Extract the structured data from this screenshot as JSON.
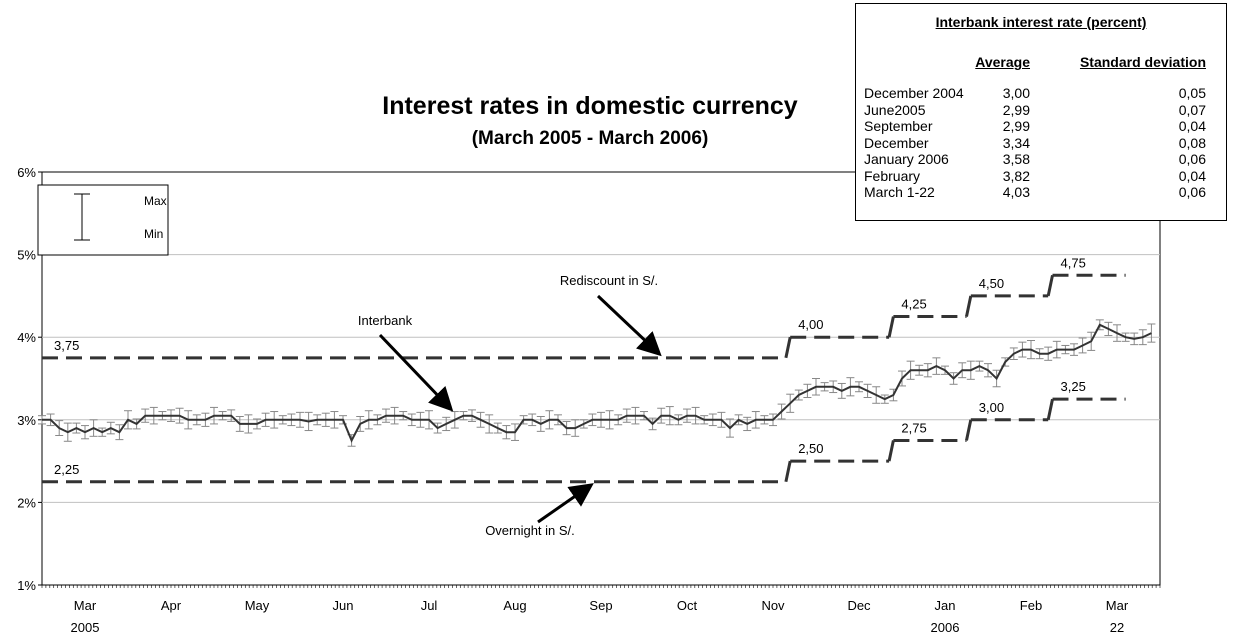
{
  "chart_data": {
    "type": "line",
    "title": "Interest rates in domestic currency",
    "subtitle": "(March 2005 - March 2006)",
    "y_axis": {
      "min": 1,
      "max": 6,
      "ticks": [
        "1%",
        "2%",
        "3%",
        "4%",
        "5%",
        "6%"
      ]
    },
    "x_axis": {
      "start_month_index": 0,
      "months": [
        {
          "label": "Mar",
          "year": "2005"
        },
        {
          "label": "Apr",
          "year": ""
        },
        {
          "label": "May",
          "year": ""
        },
        {
          "label": "Jun",
          "year": ""
        },
        {
          "label": "Jul",
          "year": ""
        },
        {
          "label": "Aug",
          "year": ""
        },
        {
          "label": "Sep",
          "year": ""
        },
        {
          "label": "Oct",
          "year": ""
        },
        {
          "label": "Nov",
          "year": ""
        },
        {
          "label": "Dec",
          "year": ""
        },
        {
          "label": "Jan",
          "year": "2006"
        },
        {
          "label": "Feb",
          "year": ""
        },
        {
          "label": "Mar",
          "year": "22"
        }
      ]
    },
    "grid": true,
    "legend": {
      "placement": "top-left",
      "max_label": "Max",
      "min_label": "Min"
    },
    "rediscount": {
      "name": "Rediscount in S/.",
      "steps": [
        {
          "from": 0.0,
          "to": 8.65,
          "value": 3.75,
          "label": "3,75"
        },
        {
          "from": 8.7,
          "to": 9.85,
          "value": 4.0,
          "label": "4,00"
        },
        {
          "from": 9.9,
          "to": 10.75,
          "value": 4.25,
          "label": "4,25"
        },
        {
          "from": 10.8,
          "to": 11.7,
          "value": 4.5,
          "label": "4,50"
        },
        {
          "from": 11.75,
          "to": 12.6,
          "value": 4.75,
          "label": "4,75"
        }
      ]
    },
    "overnight": {
      "name": "Overnight in S/.",
      "steps": [
        {
          "from": 0.0,
          "to": 8.65,
          "value": 2.25,
          "label": "2,25"
        },
        {
          "from": 8.7,
          "to": 9.85,
          "value": 2.5,
          "label": "2,50"
        },
        {
          "from": 9.9,
          "to": 10.75,
          "value": 2.75,
          "label": "2,75"
        },
        {
          "from": 10.8,
          "to": 11.7,
          "value": 3.0,
          "label": "3,00"
        },
        {
          "from": 11.75,
          "to": 12.6,
          "value": 3.25,
          "label": "3,25"
        }
      ]
    },
    "interbank": {
      "name": "Interbank",
      "points": [
        [
          0.0,
          3.0
        ],
        [
          0.1,
          3.0
        ],
        [
          0.2,
          2.9
        ],
        [
          0.3,
          2.85
        ],
        [
          0.4,
          2.9
        ],
        [
          0.5,
          2.85
        ],
        [
          0.6,
          2.9
        ],
        [
          0.7,
          2.85
        ],
        [
          0.8,
          2.9
        ],
        [
          0.9,
          2.85
        ],
        [
          1.0,
          3.0
        ],
        [
          1.1,
          2.95
        ],
        [
          1.2,
          3.05
        ],
        [
          1.3,
          3.05
        ],
        [
          1.4,
          3.05
        ],
        [
          1.5,
          3.05
        ],
        [
          1.6,
          3.05
        ],
        [
          1.7,
          3.0
        ],
        [
          1.8,
          3.0
        ],
        [
          1.9,
          3.0
        ],
        [
          2.0,
          3.05
        ],
        [
          2.1,
          3.05
        ],
        [
          2.2,
          3.05
        ],
        [
          2.3,
          2.95
        ],
        [
          2.4,
          2.95
        ],
        [
          2.5,
          2.95
        ],
        [
          2.6,
          3.0
        ],
        [
          2.7,
          3.0
        ],
        [
          2.8,
          3.0
        ],
        [
          2.9,
          3.0
        ],
        [
          3.0,
          3.0
        ],
        [
          3.1,
          2.98
        ],
        [
          3.2,
          3.0
        ],
        [
          3.3,
          3.0
        ],
        [
          3.4,
          3.0
        ],
        [
          3.5,
          3.0
        ],
        [
          3.6,
          2.75
        ],
        [
          3.7,
          2.95
        ],
        [
          3.8,
          3.0
        ],
        [
          3.9,
          3.0
        ],
        [
          4.0,
          3.05
        ],
        [
          4.1,
          3.05
        ],
        [
          4.2,
          3.05
        ],
        [
          4.3,
          3.0
        ],
        [
          4.4,
          3.0
        ],
        [
          4.5,
          3.0
        ],
        [
          4.6,
          2.9
        ],
        [
          4.7,
          2.95
        ],
        [
          4.8,
          3.0
        ],
        [
          4.9,
          3.05
        ],
        [
          5.0,
          3.05
        ],
        [
          5.1,
          3.0
        ],
        [
          5.2,
          2.95
        ],
        [
          5.3,
          2.9
        ],
        [
          5.4,
          2.85
        ],
        [
          5.5,
          2.85
        ],
        [
          5.6,
          3.0
        ],
        [
          5.7,
          3.0
        ],
        [
          5.8,
          2.95
        ],
        [
          5.9,
          3.0
        ],
        [
          6.0,
          3.0
        ],
        [
          6.1,
          2.9
        ],
        [
          6.2,
          2.9
        ],
        [
          6.3,
          2.95
        ],
        [
          6.4,
          3.0
        ],
        [
          6.5,
          3.0
        ],
        [
          6.6,
          3.0
        ],
        [
          6.7,
          3.0
        ],
        [
          6.8,
          3.05
        ],
        [
          6.9,
          3.05
        ],
        [
          7.0,
          3.05
        ],
        [
          7.1,
          2.95
        ],
        [
          7.2,
          3.05
        ],
        [
          7.3,
          3.05
        ],
        [
          7.4,
          3.0
        ],
        [
          7.5,
          3.05
        ],
        [
          7.6,
          3.05
        ],
        [
          7.7,
          3.0
        ],
        [
          7.8,
          3.0
        ],
        [
          7.9,
          3.0
        ],
        [
          8.0,
          2.9
        ],
        [
          8.1,
          3.0
        ],
        [
          8.2,
          2.95
        ],
        [
          8.3,
          3.0
        ],
        [
          8.4,
          3.0
        ],
        [
          8.5,
          3.0
        ],
        [
          8.6,
          3.1
        ],
        [
          8.7,
          3.2
        ],
        [
          8.8,
          3.3
        ],
        [
          8.9,
          3.35
        ],
        [
          9.0,
          3.4
        ],
        [
          9.1,
          3.4
        ],
        [
          9.2,
          3.4
        ],
        [
          9.3,
          3.35
        ],
        [
          9.4,
          3.4
        ],
        [
          9.5,
          3.4
        ],
        [
          9.6,
          3.35
        ],
        [
          9.7,
          3.3
        ],
        [
          9.8,
          3.25
        ],
        [
          9.9,
          3.3
        ],
        [
          10.0,
          3.5
        ],
        [
          10.1,
          3.6
        ],
        [
          10.2,
          3.6
        ],
        [
          10.3,
          3.6
        ],
        [
          10.4,
          3.65
        ],
        [
          10.5,
          3.6
        ],
        [
          10.6,
          3.5
        ],
        [
          10.7,
          3.6
        ],
        [
          10.8,
          3.6
        ],
        [
          10.9,
          3.65
        ],
        [
          11.0,
          3.6
        ],
        [
          11.1,
          3.5
        ],
        [
          11.2,
          3.7
        ],
        [
          11.3,
          3.8
        ],
        [
          11.4,
          3.85
        ],
        [
          11.5,
          3.85
        ],
        [
          11.6,
          3.8
        ],
        [
          11.7,
          3.8
        ],
        [
          11.8,
          3.85
        ],
        [
          11.9,
          3.85
        ],
        [
          12.0,
          3.85
        ],
        [
          12.1,
          3.9
        ],
        [
          12.2,
          3.95
        ],
        [
          12.3,
          4.15
        ],
        [
          12.4,
          4.1
        ],
        [
          12.5,
          4.05
        ],
        [
          12.6,
          4.0
        ],
        [
          12.7,
          3.98
        ],
        [
          12.8,
          4.0
        ],
        [
          12.9,
          4.05
        ]
      ]
    },
    "annotations": {
      "rediscount_label": "Rediscount in S/.",
      "interbank_label": "Interbank",
      "overnight_label": "Overnight in S/."
    },
    "stats_table": {
      "title": "Interbank interest rate (percent)",
      "col_average": "Average",
      "col_sd": "Standard deviation",
      "rows": [
        {
          "period": "December 2004",
          "average": "3,00",
          "sd": "0,05"
        },
        {
          "period": "June2005",
          "average": "2,99",
          "sd": "0,07"
        },
        {
          "period": "September",
          "average": "2,99",
          "sd": "0,04"
        },
        {
          "period": "December",
          "average": "3,34",
          "sd": "0,08"
        },
        {
          "period": "January 2006",
          "average": "3,58",
          "sd": "0,06"
        },
        {
          "period": "February",
          "average": "3,82",
          "sd": "0,04"
        },
        {
          "period": "March 1-22",
          "average": "4,03",
          "sd": "0,06"
        }
      ]
    },
    "colors": {
      "steps": "#333333",
      "line": "#333333",
      "whisker": "#888888",
      "grid": "#c0c0c0",
      "axis": "#000000"
    }
  }
}
